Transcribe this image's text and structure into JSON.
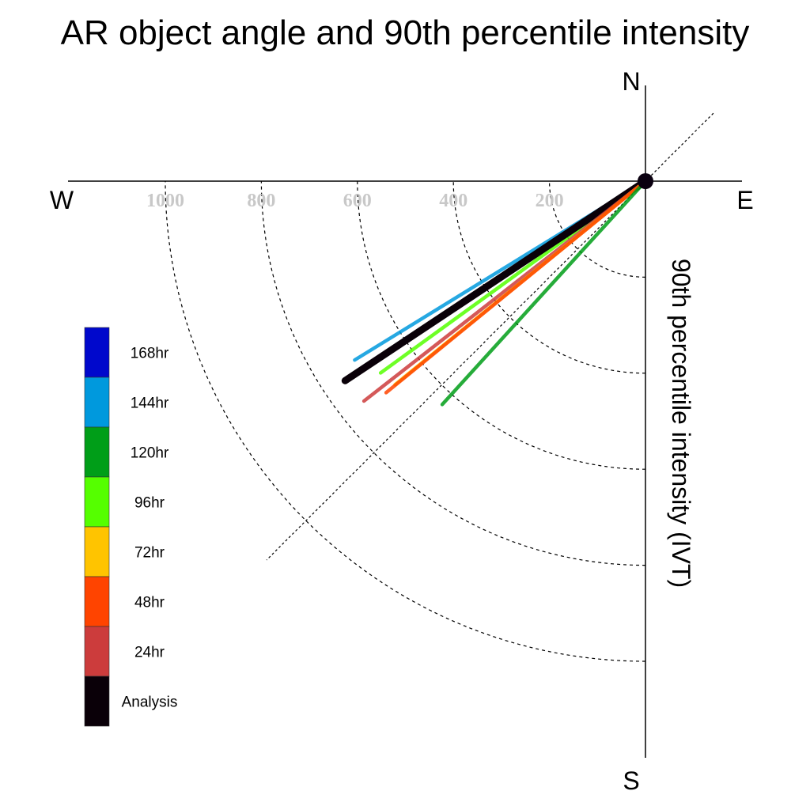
{
  "chart_data": {
    "type": "polar-vector",
    "title": "AR object angle and 90th percentile intensity",
    "ylabel": "90th percentile intensity (IVT)",
    "compass": {
      "north": "N",
      "east": "E",
      "south": "S",
      "west": "W"
    },
    "radial_ticks": [
      "1000",
      "800",
      "600",
      "400",
      "200"
    ],
    "radial_tick_values": [
      1000,
      800,
      600,
      400,
      200
    ],
    "rmax": 1200,
    "series": [
      {
        "name": "144hr",
        "color": "#0099dd",
        "angle_deg": 238.4,
        "intensity": 711
      },
      {
        "name": "96hr",
        "color": "#55ff00",
        "angle_deg": 234.1,
        "intensity": 681
      },
      {
        "name": "Analysis",
        "color": "#0a0008",
        "angle_deg": 236.4,
        "intensity": 751
      },
      {
        "name": "24hr",
        "color": "#cc3c3c",
        "angle_deg": 232.0,
        "intensity": 744
      },
      {
        "name": "72hr",
        "color": "#ffc400",
        "angle_deg": 230.9,
        "intensity": 672
      },
      {
        "name": "48hr",
        "color": "#ff4400",
        "angle_deg": 230.8,
        "intensity": 697
      },
      {
        "name": "120hr",
        "color": "#009e18",
        "angle_deg": 222.3,
        "intensity": 629
      }
    ],
    "legend": {
      "entries": [
        "168hr",
        "144hr",
        "120hr",
        "96hr",
        "72hr",
        "48hr",
        "24hr",
        "Analysis"
      ],
      "colors": [
        "#0008cc",
        "#0099dd",
        "#009e18",
        "#55ff00",
        "#ffc400",
        "#ff4400",
        "#cc3c3c",
        "#0a0008"
      ],
      "position": "left"
    }
  }
}
